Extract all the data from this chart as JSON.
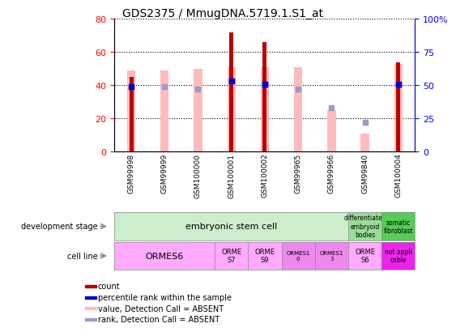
{
  "title": "GDS2375 / MmugDNA.5719.1.S1_at",
  "samples": [
    "GSM99998",
    "GSM99999",
    "GSM100000",
    "GSM100001",
    "GSM100002",
    "GSM99965",
    "GSM99966",
    "GSM99840",
    "GSM100004"
  ],
  "count_values": [
    45,
    0,
    0,
    72,
    66,
    0,
    0,
    0,
    54
  ],
  "value_absent": [
    49,
    49,
    50,
    51,
    51,
    51,
    25,
    11,
    53
  ],
  "rank_values": [
    null,
    49,
    47,
    53,
    51,
    47,
    33,
    22,
    51
  ],
  "rank_absent": [
    false,
    true,
    true,
    false,
    false,
    true,
    true,
    true,
    false
  ],
  "percentile_values": [
    49,
    null,
    null,
    53,
    51,
    null,
    null,
    null,
    51
  ],
  "bar_color_dark": "#bb0000",
  "bar_color_light": "#ffbbbb",
  "dot_color_dark": "#0000cc",
  "dot_color_light": "#9999cc",
  "left_ylim": [
    0,
    80
  ],
  "right_ylim": [
    0,
    100
  ],
  "left_yticks": [
    0,
    20,
    40,
    60,
    80
  ],
  "right_yticks": [
    0,
    25,
    50,
    75,
    100
  ],
  "right_yticklabels": [
    "0",
    "25",
    "50",
    "75",
    "100%"
  ],
  "legend_items": [
    {
      "label": "count",
      "color": "#bb0000"
    },
    {
      "label": "percentile rank within the sample",
      "color": "#0000cc"
    },
    {
      "label": "value, Detection Call = ABSENT",
      "color": "#ffbbbb"
    },
    {
      "label": "rank, Detection Call = ABSENT",
      "color": "#9999cc"
    }
  ]
}
